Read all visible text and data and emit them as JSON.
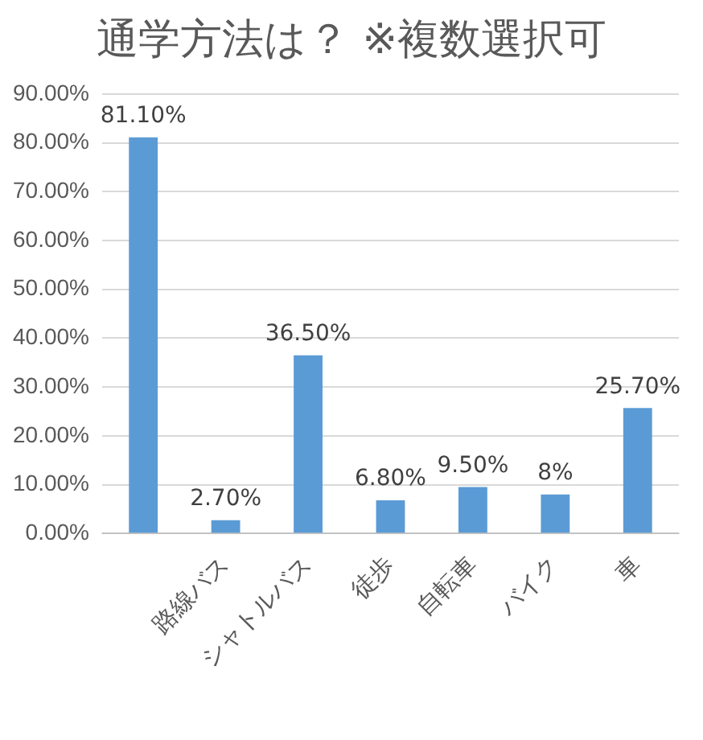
{
  "chart_data": {
    "type": "bar",
    "title": "通学方法は？ ※複数選択可",
    "categories": [
      null,
      "路線バス",
      "シャトルバス",
      "徒歩",
      "自転車",
      "バイク",
      "車"
    ],
    "values": [
      81.1,
      2.7,
      36.5,
      6.8,
      9.5,
      8,
      25.7
    ],
    "value_labels": [
      "81.10%",
      "2.70%",
      "36.50%",
      "6.80%",
      "9.50%",
      "8%",
      "25.70%"
    ],
    "color": "#5b9bd5",
    "ylim": [
      0,
      90
    ],
    "yticks": [
      {
        "value": 0,
        "label": "0.00%"
      },
      {
        "value": 10,
        "label": "10.00%"
      },
      {
        "value": 20,
        "label": "20.00%"
      },
      {
        "value": 30,
        "label": "30.00%"
      },
      {
        "value": 40,
        "label": "40.00%"
      },
      {
        "value": 50,
        "label": "50.00%"
      },
      {
        "value": 60,
        "label": "60.00%"
      },
      {
        "value": 70,
        "label": "70.00%"
      },
      {
        "value": 80,
        "label": "80.00%"
      },
      {
        "value": 90,
        "label": "90.00%"
      }
    ],
    "grid": "y",
    "legend": false
  }
}
